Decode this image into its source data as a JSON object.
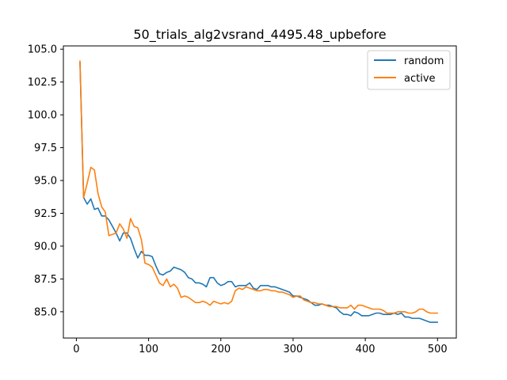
{
  "chart_data": {
    "type": "line",
    "title": "50_trials_alg2vsrand_4495.48_upbefore",
    "xlabel": "",
    "ylabel": "",
    "xlim": [
      -18,
      526
    ],
    "ylim": [
      83.0,
      105.25
    ],
    "grid": false,
    "legend_position": "top-right",
    "x_ticks": [
      0,
      100,
      200,
      300,
      400,
      500
    ],
    "x_tick_labels": [
      "0",
      "100",
      "200",
      "300",
      "400",
      "500"
    ],
    "y_ticks": [
      85.0,
      87.5,
      90.0,
      92.5,
      95.0,
      97.5,
      100.0,
      102.5,
      105.0
    ],
    "y_tick_labels": [
      "85.0",
      "87.5",
      "90.0",
      "92.5",
      "95.0",
      "97.5",
      "100.0",
      "102.5",
      "105.0"
    ],
    "series": [
      {
        "name": "random",
        "color": "#1f77b4",
        "x": [
          5,
          10,
          15,
          20,
          25,
          30,
          35,
          40,
          45,
          50,
          55,
          60,
          65,
          70,
          75,
          80,
          85,
          90,
          95,
          100,
          105,
          110,
          115,
          120,
          125,
          130,
          135,
          140,
          145,
          150,
          155,
          160,
          165,
          170,
          175,
          180,
          185,
          190,
          195,
          200,
          205,
          210,
          215,
          220,
          225,
          230,
          235,
          240,
          245,
          250,
          255,
          260,
          265,
          270,
          275,
          280,
          285,
          290,
          295,
          300,
          305,
          310,
          315,
          320,
          325,
          330,
          335,
          340,
          345,
          350,
          355,
          360,
          365,
          370,
          375,
          380,
          385,
          390,
          395,
          400,
          405,
          410,
          415,
          420,
          425,
          430,
          435,
          440,
          445,
          450,
          455,
          460,
          465,
          470,
          475,
          480,
          485,
          490,
          495,
          500
        ],
        "values": [
          104.0,
          93.7,
          93.2,
          93.6,
          92.8,
          92.9,
          92.3,
          92.3,
          92.0,
          91.5,
          91.0,
          90.4,
          91.0,
          91.0,
          90.6,
          89.8,
          89.1,
          89.6,
          89.3,
          89.3,
          89.2,
          88.5,
          87.9,
          87.8,
          88.0,
          88.1,
          88.4,
          88.3,
          88.2,
          88.0,
          87.6,
          87.5,
          87.2,
          87.2,
          87.1,
          86.9,
          87.6,
          87.6,
          87.2,
          87.0,
          87.1,
          87.3,
          87.3,
          86.9,
          87.0,
          87.0,
          87.0,
          87.2,
          86.8,
          86.7,
          87.0,
          87.0,
          87.0,
          86.9,
          86.9,
          86.8,
          86.7,
          86.6,
          86.5,
          86.2,
          86.2,
          86.1,
          86.0,
          85.9,
          85.7,
          85.5,
          85.5,
          85.6,
          85.5,
          85.5,
          85.4,
          85.3,
          85.0,
          84.8,
          84.8,
          84.7,
          85.0,
          84.9,
          84.7,
          84.7,
          84.7,
          84.8,
          84.9,
          84.9,
          84.8,
          84.8,
          84.8,
          84.9,
          84.8,
          84.9,
          84.6,
          84.6,
          84.5,
          84.5,
          84.5,
          84.4,
          84.3,
          84.2,
          84.2,
          84.2
        ]
      },
      {
        "name": "active",
        "color": "#ff7f0e",
        "x": [
          5,
          10,
          15,
          20,
          25,
          30,
          35,
          40,
          45,
          50,
          55,
          60,
          65,
          70,
          75,
          80,
          85,
          90,
          95,
          100,
          105,
          110,
          115,
          120,
          125,
          130,
          135,
          140,
          145,
          150,
          155,
          160,
          165,
          170,
          175,
          180,
          185,
          190,
          195,
          200,
          205,
          210,
          215,
          220,
          225,
          230,
          235,
          240,
          245,
          250,
          255,
          260,
          265,
          270,
          275,
          280,
          285,
          290,
          295,
          300,
          305,
          310,
          315,
          320,
          325,
          330,
          335,
          340,
          345,
          350,
          355,
          360,
          365,
          370,
          375,
          380,
          385,
          390,
          395,
          400,
          405,
          410,
          415,
          420,
          425,
          430,
          435,
          440,
          445,
          450,
          455,
          460,
          465,
          470,
          475,
          480,
          485,
          490,
          495,
          500
        ],
        "values": [
          104.1,
          93.7,
          94.8,
          96.0,
          95.8,
          94.0,
          93.0,
          92.6,
          90.8,
          90.9,
          91.0,
          91.7,
          91.3,
          90.6,
          92.1,
          91.5,
          91.4,
          90.5,
          88.7,
          88.6,
          88.4,
          87.8,
          87.2,
          87.0,
          87.5,
          86.9,
          87.1,
          86.8,
          86.1,
          86.2,
          86.1,
          85.9,
          85.7,
          85.7,
          85.8,
          85.7,
          85.5,
          85.8,
          85.7,
          85.6,
          85.7,
          85.6,
          85.8,
          86.6,
          86.8,
          86.7,
          86.9,
          86.8,
          86.7,
          86.6,
          86.6,
          86.7,
          86.7,
          86.6,
          86.6,
          86.5,
          86.5,
          86.4,
          86.3,
          86.1,
          86.2,
          86.2,
          85.9,
          85.8,
          85.7,
          85.7,
          85.6,
          85.6,
          85.5,
          85.4,
          85.4,
          85.4,
          85.3,
          85.3,
          85.3,
          85.5,
          85.2,
          85.5,
          85.5,
          85.4,
          85.3,
          85.2,
          85.2,
          85.2,
          85.1,
          84.9,
          84.9,
          84.9,
          85.0,
          85.0,
          85.0,
          84.9,
          84.9,
          85.0,
          85.2,
          85.2,
          85.0,
          84.9,
          84.9,
          84.9
        ]
      }
    ]
  }
}
